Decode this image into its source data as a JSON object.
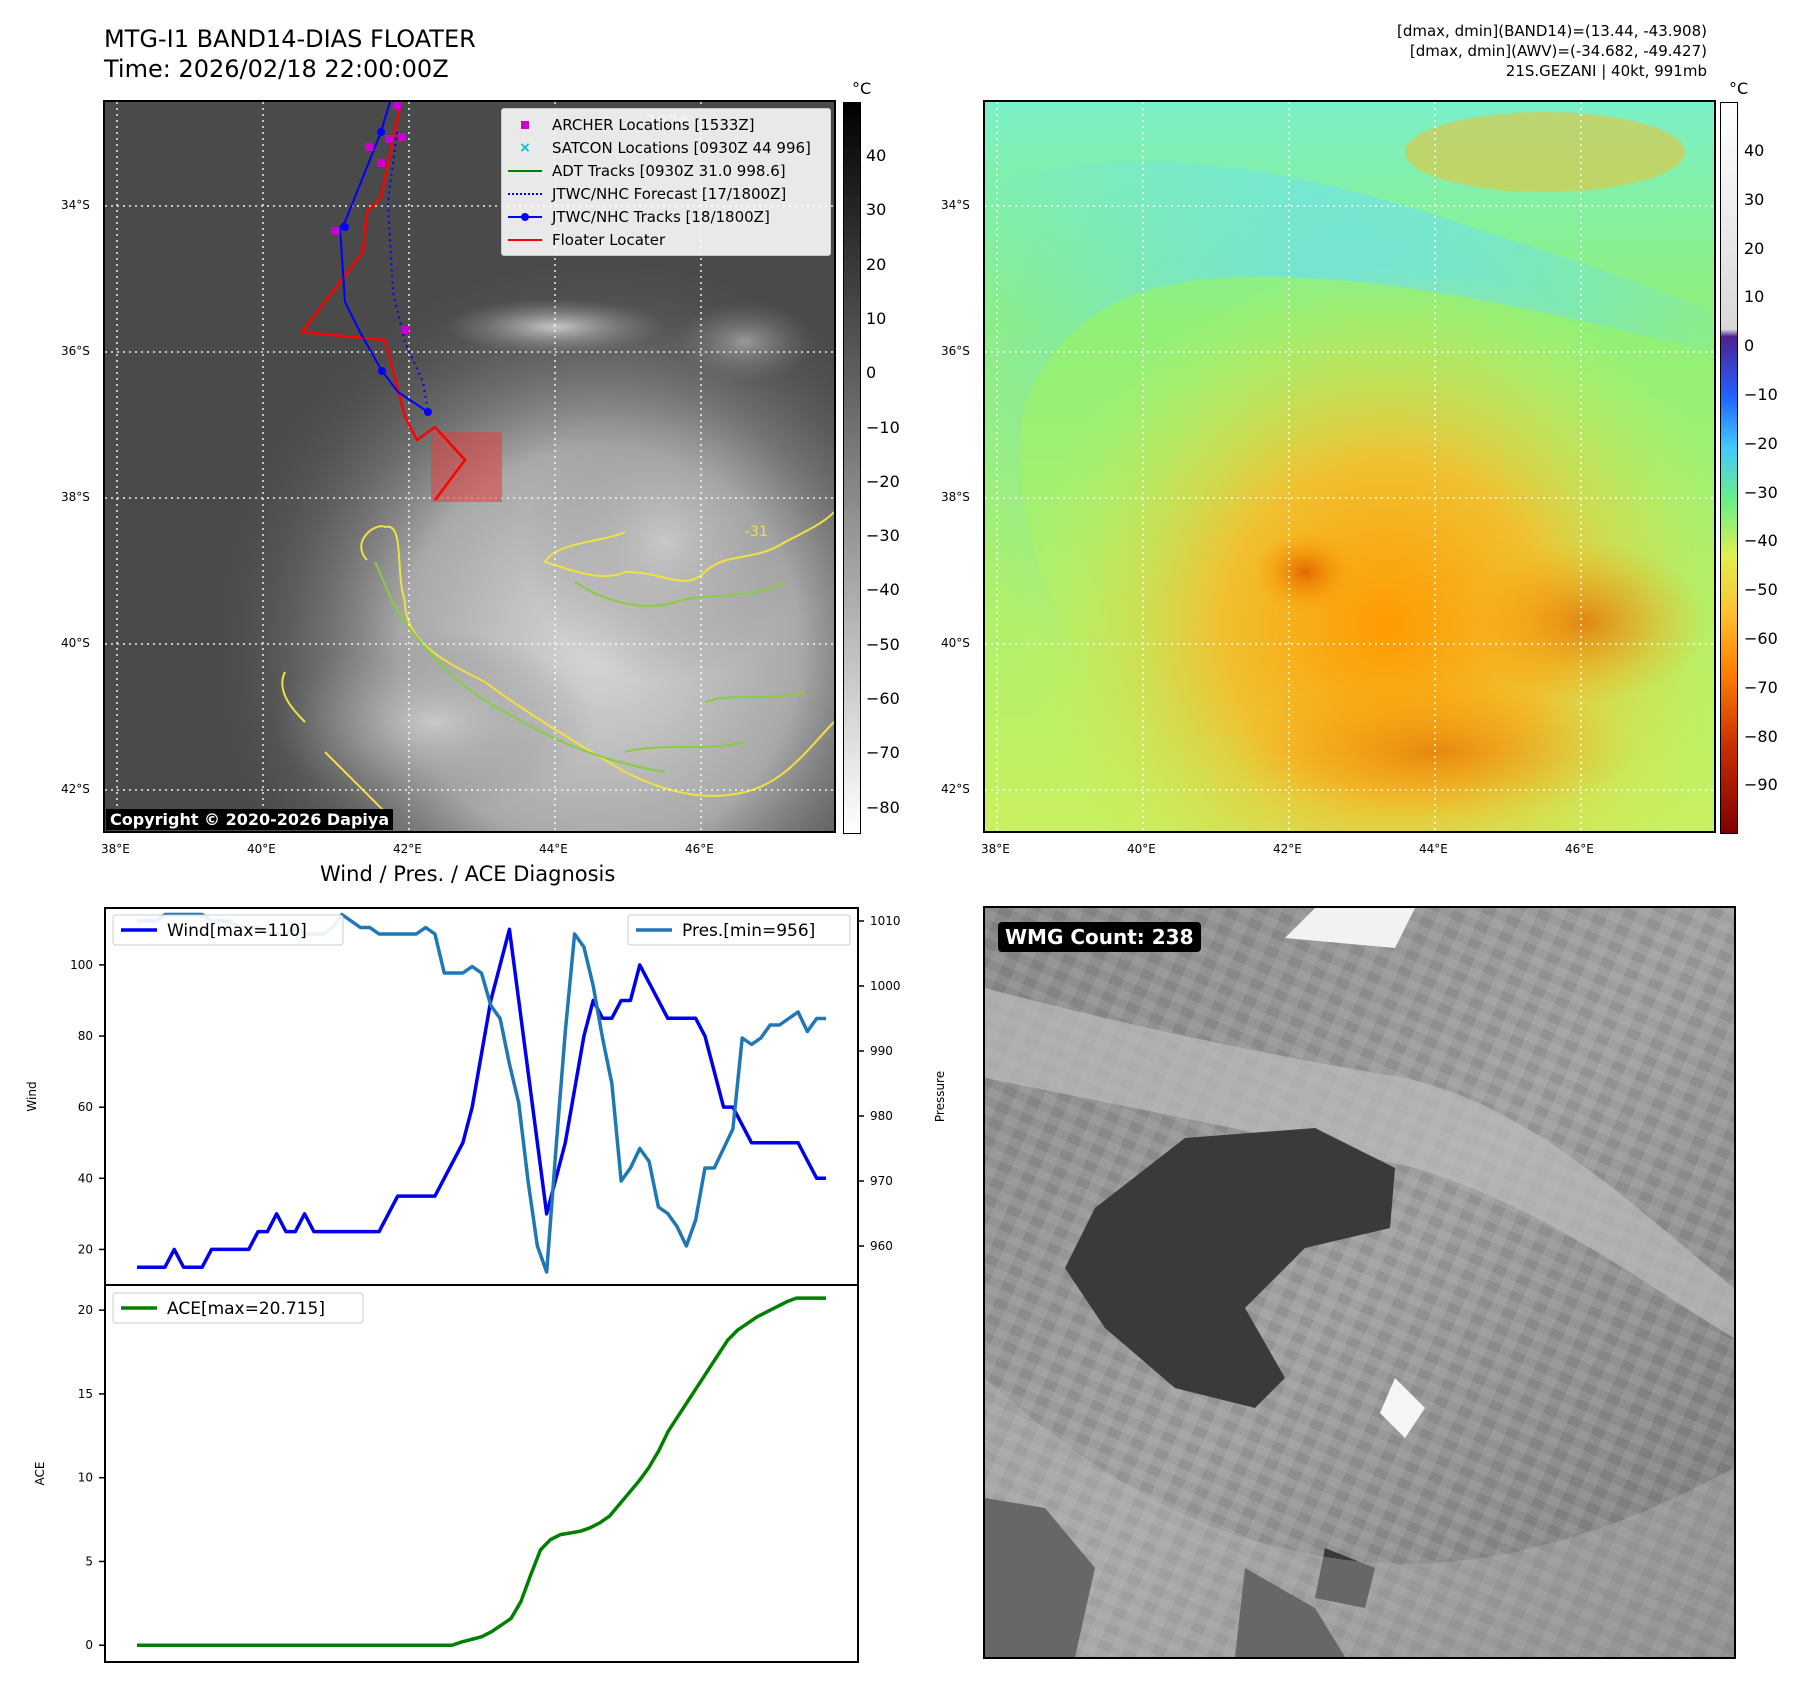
{
  "header": {
    "title_line1": "MTG-I1 BAND14-DIAS FLOATER",
    "title_line2": "Time: 2026/02/18 22:00:00Z",
    "info_line1": "[dmax, dmin](BAND14)=(13.44, -43.908)",
    "info_line2": "[dmax, dmin](AWV)=(-34.682, -49.427)",
    "info_line3": "21S.GEZANI | 40kt, 991mb"
  },
  "map_axes": {
    "lon_ticks": [
      "38°E",
      "40°E",
      "42°E",
      "44°E",
      "46°E"
    ],
    "lat_ticks": [
      "34°S",
      "36°S",
      "38°S",
      "40°S",
      "42°S"
    ]
  },
  "ir_panel": {
    "copyright": "Copyright © 2020-2026 Dapiya",
    "contour_label": "-31",
    "colorbar": {
      "unit": "°C",
      "ticks": [
        "40",
        "30",
        "20",
        "10",
        "0",
        "−10",
        "−20",
        "−30",
        "−40",
        "−50",
        "−60",
        "−70",
        "−80"
      ]
    },
    "legend": [
      {
        "label": "ARCHER Locations [1533Z]",
        "color": "#cc00cc",
        "marker": "square"
      },
      {
        "label": "SATCON Locations [0930Z 44 996]",
        "color": "#00bbcc",
        "marker": "x"
      },
      {
        "label": "ADT Tracks [0930Z 31.0 998.6]",
        "color": "#008000",
        "marker": "line"
      },
      {
        "label": "JTWC/NHC Forecast [17/1800Z]",
        "color": "#0000ff",
        "marker": "dotted"
      },
      {
        "label": "JTWC/NHC Tracks [18/1800Z]",
        "color": "#0000ff",
        "marker": "line-dot"
      },
      {
        "label": "Floater Locater",
        "color": "#ff0000",
        "marker": "line"
      }
    ]
  },
  "wv_panel": {
    "colorbar": {
      "unit": "°C",
      "ticks": [
        "40",
        "30",
        "20",
        "10",
        "0",
        "−10",
        "−20",
        "−30",
        "−40",
        "−50",
        "−60",
        "−70",
        "−80",
        "−90"
      ]
    }
  },
  "wmg_panel": {
    "label": "WMG Count: 238"
  },
  "chart_data": [
    {
      "type": "line",
      "title": "Wind / Pres. / ACE Diagnosis",
      "ylabel": "Wind",
      "y2label": "Pressure",
      "ylim": [
        10,
        116
      ],
      "y2lim": [
        954,
        1012
      ],
      "yticks": [
        20,
        40,
        60,
        80,
        100
      ],
      "y2ticks": [
        960,
        970,
        980,
        990,
        1000,
        1010
      ],
      "series": [
        {
          "name": "Wind[max=110]",
          "color": "#0000ee",
          "axis": "left",
          "values": [
            15,
            15,
            15,
            15,
            20,
            15,
            15,
            15,
            20,
            20,
            20,
            20,
            20,
            25,
            25,
            30,
            25,
            25,
            30,
            25,
            25,
            25,
            25,
            25,
            25,
            25,
            25,
            30,
            35,
            35,
            35,
            35,
            35,
            40,
            45,
            50,
            60,
            75,
            90,
            100,
            110,
            90,
            70,
            50,
            30,
            40,
            50,
            65,
            80,
            90,
            85,
            85,
            90,
            90,
            100,
            95,
            90,
            85,
            85,
            85,
            85,
            80,
            70,
            60,
            60,
            55,
            50,
            50,
            50,
            50,
            50,
            50,
            45,
            40,
            40
          ]
        },
        {
          "name": "Pres.[min=956]",
          "color": "#1f77b4",
          "axis": "right",
          "values": [
            1010,
            1010,
            1010,
            1011,
            1011,
            1011,
            1011,
            1011,
            1010,
            1010,
            1010,
            1009,
            1009,
            1009,
            1008,
            1008,
            1008,
            1009,
            1008,
            1008,
            1008,
            1009,
            1011,
            1010,
            1009,
            1009,
            1008,
            1008,
            1008,
            1008,
            1008,
            1009,
            1008,
            1002,
            1002,
            1002,
            1003,
            1002,
            997,
            995,
            988,
            982,
            970,
            960,
            956,
            975,
            993,
            1008,
            1006,
            1000,
            992,
            985,
            970,
            972,
            975,
            973,
            966,
            965,
            963,
            960,
            964,
            972,
            972,
            975,
            978,
            992,
            991,
            992,
            994,
            994,
            995,
            996,
            993,
            995,
            995
          ]
        }
      ]
    },
    {
      "type": "line",
      "ylabel": "ACE",
      "ylim": [
        -1,
        21.5
      ],
      "yticks": [
        0,
        5,
        10,
        15,
        20
      ],
      "series": [
        {
          "name": "ACE[max=20.715]",
          "color": "#008000",
          "values": [
            0,
            0,
            0,
            0,
            0,
            0,
            0,
            0,
            0,
            0,
            0,
            0,
            0,
            0,
            0,
            0,
            0,
            0,
            0,
            0,
            0,
            0,
            0,
            0,
            0,
            0,
            0,
            0,
            0,
            0,
            0,
            0,
            0,
            0.2,
            0.35,
            0.5,
            0.8,
            1.2,
            1.6,
            2.6,
            4.2,
            5.7,
            6.3,
            6.6,
            6.7,
            6.8,
            7.0,
            7.3,
            7.7,
            8.4,
            9.1,
            9.8,
            10.6,
            11.6,
            12.8,
            13.7,
            14.6,
            15.5,
            16.4,
            17.3,
            18.2,
            18.8,
            19.2,
            19.6,
            19.9,
            20.2,
            20.5,
            20.715,
            20.715,
            20.715,
            20.715
          ]
        }
      ]
    }
  ]
}
